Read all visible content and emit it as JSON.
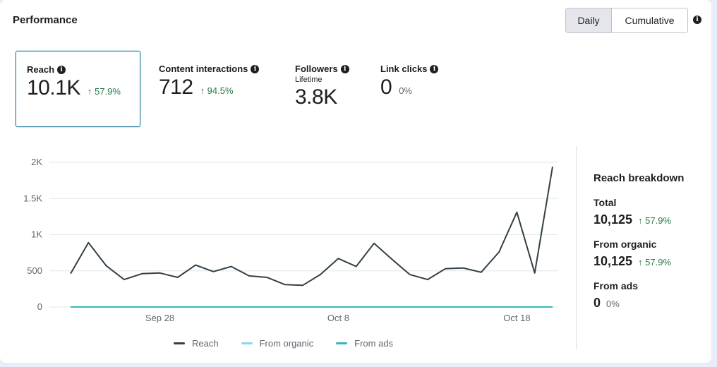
{
  "header": {
    "title": "Performance",
    "toggle": {
      "daily": "Daily",
      "cumulative": "Cumulative"
    },
    "info_icon": "info-icon"
  },
  "metrics": [
    {
      "label": "Reach",
      "value": "10.1K",
      "change": "↑ 57.9%",
      "selected": true
    },
    {
      "label": "Content interactions",
      "value": "712",
      "change": "↑ 94.5%"
    },
    {
      "label": "Followers",
      "sublabel": "Lifetime",
      "value": "3.8K",
      "change": ""
    },
    {
      "label": "Link clicks",
      "value": "0",
      "change": "0%"
    }
  ],
  "breakdown": {
    "title": "Reach breakdown",
    "total": {
      "label": "Total",
      "value": "10,125",
      "change": "↑ 57.9%"
    },
    "organic": {
      "label": "From organic",
      "value": "10,125",
      "change": "↑ 57.9%"
    },
    "ads": {
      "label": "From ads",
      "value": "0",
      "change": "0%"
    }
  },
  "legend": [
    {
      "name": "Reach",
      "color": "#344044"
    },
    {
      "name": "From organic",
      "color": "#8ed4f2"
    },
    {
      "name": "From ads",
      "color": "#34b7c1"
    }
  ],
  "chart_data": {
    "type": "line",
    "y_ticks": [
      "0",
      "500",
      "1K",
      "1.5K",
      "2K"
    ],
    "ylim": [
      0,
      2000
    ],
    "x_ticks": [
      {
        "label": "Sep 28",
        "index": 5
      },
      {
        "label": "Oct 8",
        "index": 15
      },
      {
        "label": "Oct 18",
        "index": 25
      }
    ],
    "series": [
      {
        "name": "Reach",
        "color": "#344044",
        "values": [
          460,
          890,
          570,
          380,
          460,
          470,
          410,
          580,
          490,
          560,
          430,
          410,
          310,
          300,
          450,
          670,
          560,
          880,
          660,
          450,
          380,
          530,
          540,
          480,
          760,
          1310,
          470,
          1940
        ]
      },
      {
        "name": "From ads",
        "color": "#34b7c1",
        "values": [
          0,
          0,
          0,
          0,
          0,
          0,
          0,
          0,
          0,
          0,
          0,
          0,
          0,
          0,
          0,
          0,
          0,
          0,
          0,
          0,
          0,
          0,
          0,
          0,
          0,
          0,
          0,
          0
        ]
      }
    ]
  }
}
